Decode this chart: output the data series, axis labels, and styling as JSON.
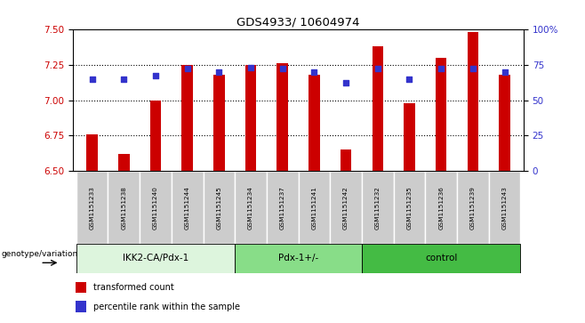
{
  "title": "GDS4933/ 10604974",
  "samples": [
    "GSM1151233",
    "GSM1151238",
    "GSM1151240",
    "GSM1151244",
    "GSM1151245",
    "GSM1151234",
    "GSM1151237",
    "GSM1151241",
    "GSM1151242",
    "GSM1151232",
    "GSM1151235",
    "GSM1151236",
    "GSM1151239",
    "GSM1151243"
  ],
  "bar_values": [
    6.76,
    6.62,
    7.0,
    7.25,
    7.18,
    7.25,
    7.26,
    7.18,
    6.65,
    7.38,
    6.98,
    7.3,
    7.48,
    7.18
  ],
  "percentile_values": [
    65,
    65,
    67,
    72,
    70,
    73,
    72,
    70,
    62,
    72,
    65,
    72,
    72,
    70
  ],
  "bar_color": "#cc0000",
  "percentile_color": "#3333cc",
  "ymin": 6.5,
  "ymax": 7.5,
  "yticks": [
    6.5,
    6.75,
    7.0,
    7.25,
    7.5
  ],
  "y2min": 0,
  "y2max": 100,
  "y2ticks": [
    0,
    25,
    50,
    75,
    100
  ],
  "y2ticklabels": [
    "0",
    "25",
    "50",
    "75",
    "100%"
  ],
  "groups": [
    {
      "label": "IKK2-CA/Pdx-1",
      "start": 0,
      "end": 5,
      "color": "#ddf5dd"
    },
    {
      "label": "Pdx-1+/-",
      "start": 5,
      "end": 9,
      "color": "#88dd88"
    },
    {
      "label": "control",
      "start": 9,
      "end": 14,
      "color": "#44bb44"
    }
  ],
  "legend_bar_label": "transformed count",
  "legend_pct_label": "percentile rank within the sample",
  "genotype_label": "genotype/variation",
  "left_axis_color": "#cc0000",
  "right_axis_color": "#3333cc",
  "sample_box_color": "#cccccc",
  "bar_width": 0.35
}
